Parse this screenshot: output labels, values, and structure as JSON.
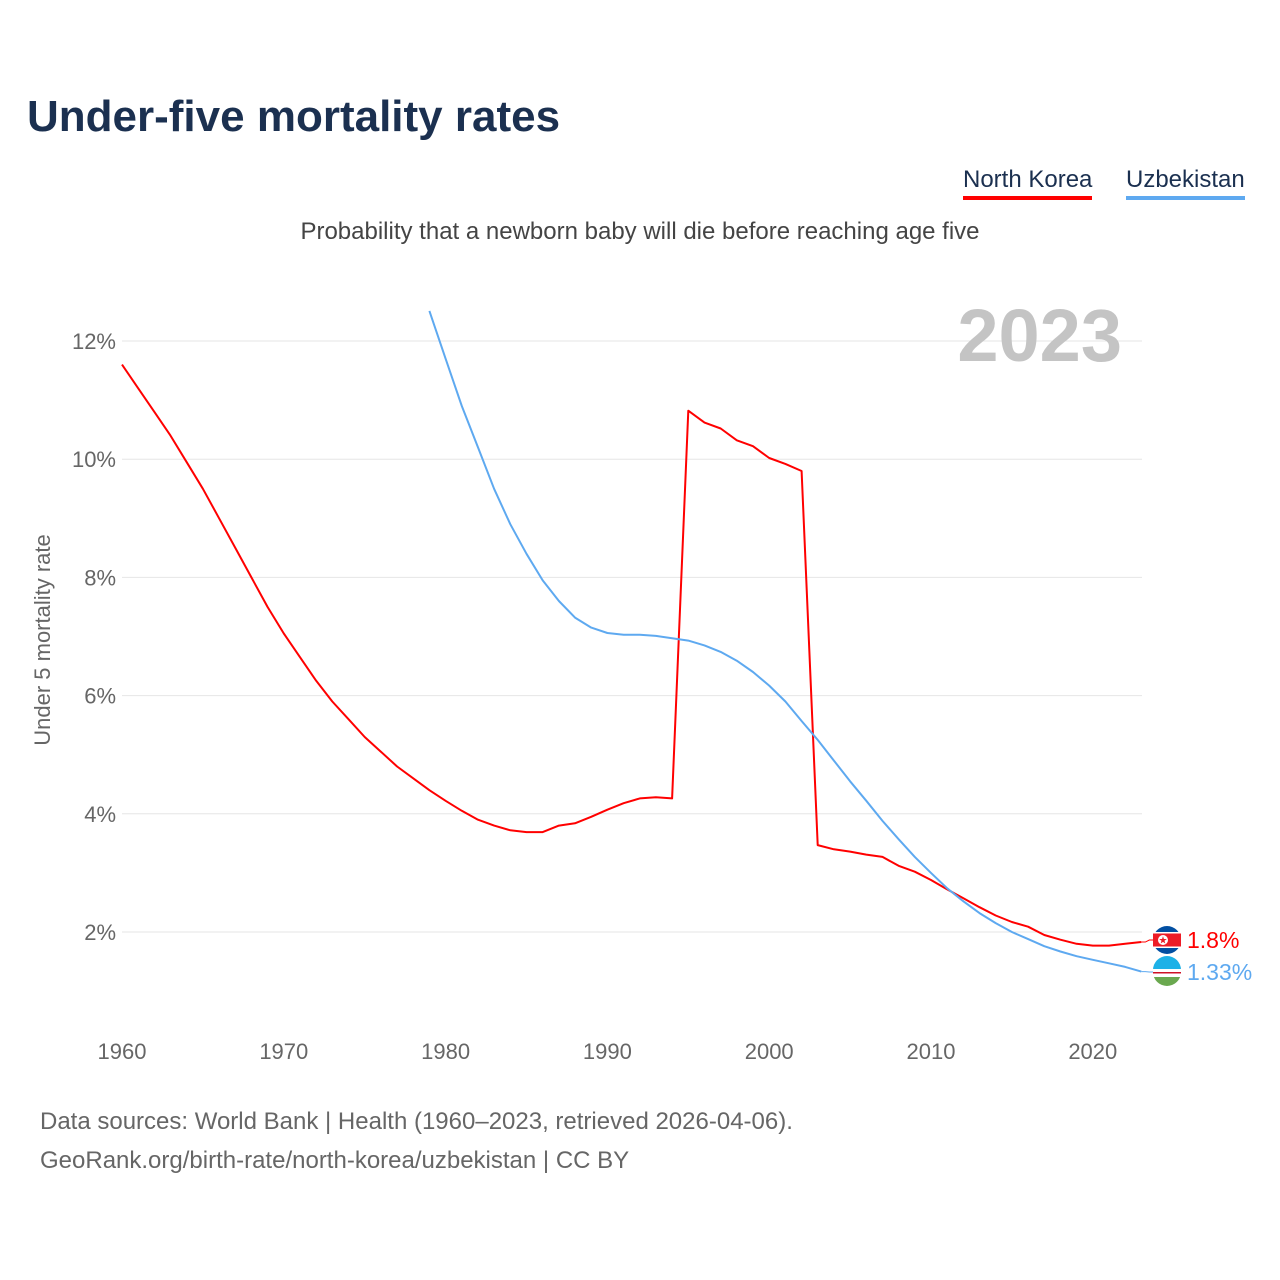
{
  "title": "Under-five mortality rates",
  "subtitle": "Probability that a newborn baby will die before reaching age five",
  "source_line1": "Data sources: World Bank | Health (1960–2023, retrieved 2026-04-06).",
  "source_line2": "GeoRank.org/birth-rate/north-korea/uzbekistan | CC BY",
  "chart_data": {
    "type": "line",
    "title": "Under-five mortality rates",
    "ylabel": "Under 5 mortality rate",
    "xlabel": "",
    "year_label": "2023",
    "xlim": [
      1960,
      2023
    ],
    "ylim": [
      0,
      13
    ],
    "xticks": [
      1960,
      1970,
      1980,
      1990,
      2000,
      2010,
      2020
    ],
    "yticks": [
      2,
      4,
      6,
      8,
      10,
      12
    ],
    "ytick_labels": [
      "2%",
      "4%",
      "6%",
      "8%",
      "10%",
      "12%"
    ],
    "grid": true,
    "legend": "top-right",
    "series": [
      {
        "name": "North Korea",
        "color": "#ff0000",
        "end_label": "1.8%",
        "start_year": 1960,
        "values": [
          11.6,
          11.2,
          10.8,
          10.4,
          9.95,
          9.5,
          9.0,
          8.5,
          8.0,
          7.5,
          7.05,
          6.65,
          6.25,
          5.9,
          5.6,
          5.3,
          5.05,
          4.8,
          4.6,
          4.4,
          4.22,
          4.05,
          3.9,
          3.8,
          3.72,
          3.69,
          3.69,
          3.8,
          3.84,
          3.95,
          4.07,
          4.18,
          4.26,
          4.28,
          4.26,
          10.82,
          10.62,
          10.52,
          10.32,
          10.22,
          10.02,
          9.92,
          9.8,
          3.47,
          3.4,
          3.36,
          3.31,
          3.27,
          3.12,
          3.02,
          2.88,
          2.72,
          2.57,
          2.42,
          2.28,
          2.17,
          2.09,
          1.95,
          1.87,
          1.8,
          1.77,
          1.77,
          1.8,
          1.83
        ]
      },
      {
        "name": "Uzbekistan",
        "color": "#5ea9f0",
        "end_label": "1.33%",
        "start_year": 1979,
        "values": [
          12.51,
          11.7,
          10.9,
          10.2,
          9.5,
          8.9,
          8.4,
          7.95,
          7.6,
          7.32,
          7.15,
          7.06,
          7.03,
          7.03,
          7.01,
          6.97,
          6.93,
          6.85,
          6.74,
          6.59,
          6.4,
          6.17,
          5.9,
          5.57,
          5.25,
          4.9,
          4.55,
          4.22,
          3.88,
          3.57,
          3.27,
          3.0,
          2.74,
          2.52,
          2.32,
          2.15,
          2.0,
          1.88,
          1.76,
          1.67,
          1.59,
          1.53,
          1.47,
          1.41,
          1.33
        ]
      }
    ]
  }
}
